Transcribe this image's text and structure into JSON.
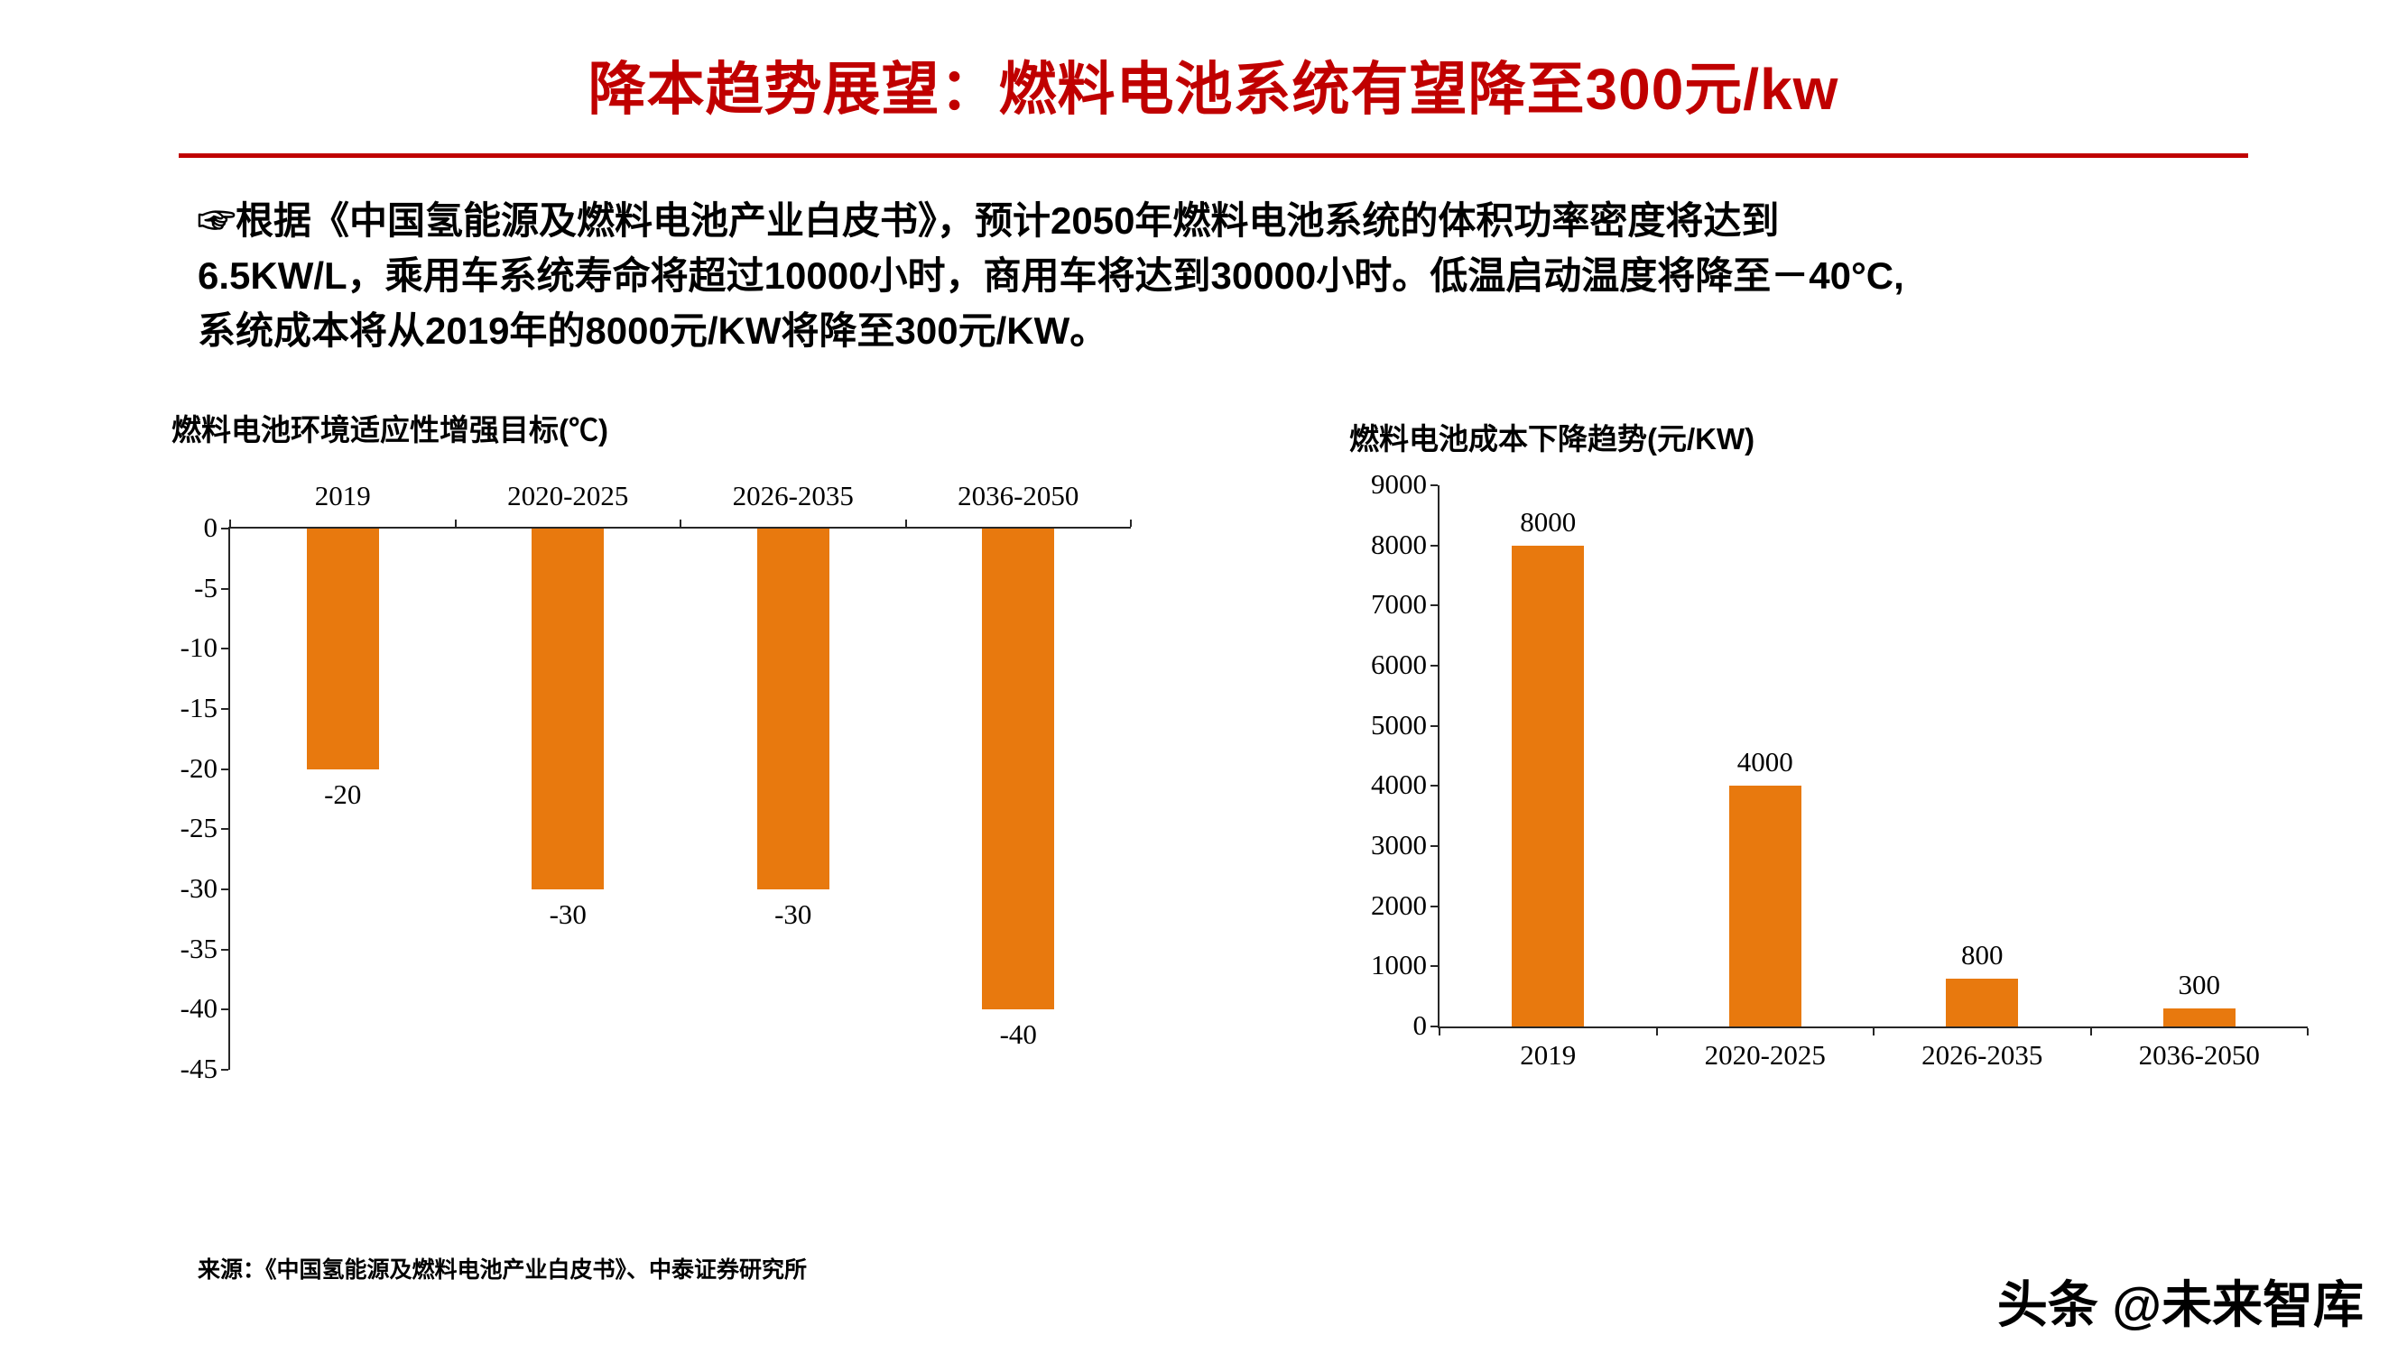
{
  "page": {
    "title": "降本趋势展望：燃料电池系统有望降至300元/kw",
    "intro_lines": [
      "☞根据《中国氢能源及燃料电池产业白皮书》，预计2050年燃料电池系统的体积功率密度将达到",
      "6.5KW/L，乘用车系统寿命将超过10000小时，商用车将达到30000小时。低温启动温度将降至－40°C,",
      "系统成本将从2019年的8000元/KW将降至300元/KW。"
    ],
    "source": "来源：《中国氢能源及燃料电池产业白皮书》、中泰证券研究所",
    "watermark": "头条 @未来智库"
  },
  "colors": {
    "accent_red": "#C00000",
    "bar_orange": "#E8790E",
    "axis_black": "#262626"
  },
  "chart_data": [
    {
      "type": "bar",
      "title": "燃料电池环境适应性增强目标(℃)",
      "categories": [
        "2019",
        "2020-2025",
        "2026-2035",
        "2036-2050"
      ],
      "values": [
        -20,
        -30,
        -30,
        -40
      ],
      "ylabel": "",
      "xlabel": "",
      "ylim": [
        0,
        -45
      ],
      "ytick_step": -5,
      "bar_direction": "down",
      "category_axis_position": "top",
      "data_label_position": "outside-end",
      "grid": false,
      "legend": "none"
    },
    {
      "type": "bar",
      "title": "燃料电池成本下降趋势(元/KW)",
      "categories": [
        "2019",
        "2020-2025",
        "2026-2035",
        "2036-2050"
      ],
      "values": [
        8000,
        4000,
        800,
        300
      ],
      "ylabel": "",
      "xlabel": "",
      "ylim": [
        0,
        9000
      ],
      "ytick_step": 1000,
      "bar_direction": "up",
      "category_axis_position": "bottom",
      "data_label_position": "outside-end",
      "grid": false,
      "legend": "none"
    }
  ]
}
